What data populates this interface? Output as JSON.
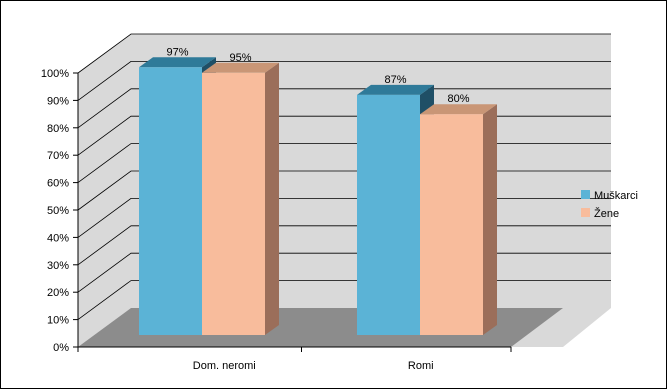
{
  "chart_data": {
    "type": "bar",
    "categories": [
      "Dom. neromi",
      "Romi"
    ],
    "series": [
      {
        "name": "Muškarci",
        "values": [
          97,
          87
        ],
        "labels": [
          "97%",
          "87%"
        ],
        "color": "#5bb3d6",
        "top_color": "#2f7a99",
        "side_color": "#1f4f66"
      },
      {
        "name": "Žene",
        "values": [
          95,
          80
        ],
        "labels": [
          "95%",
          "80%"
        ],
        "color": "#f8bc9c",
        "top_color": "#c99676",
        "side_color": "#9b6e5a"
      }
    ],
    "y_ticks": [
      "0%",
      "10%",
      "20%",
      "30%",
      "40%",
      "50%",
      "60%",
      "70%",
      "80%",
      "90%",
      "100%"
    ],
    "ylim": [
      0,
      100
    ],
    "grid": true,
    "legend_position": "right",
    "three_d": true
  }
}
